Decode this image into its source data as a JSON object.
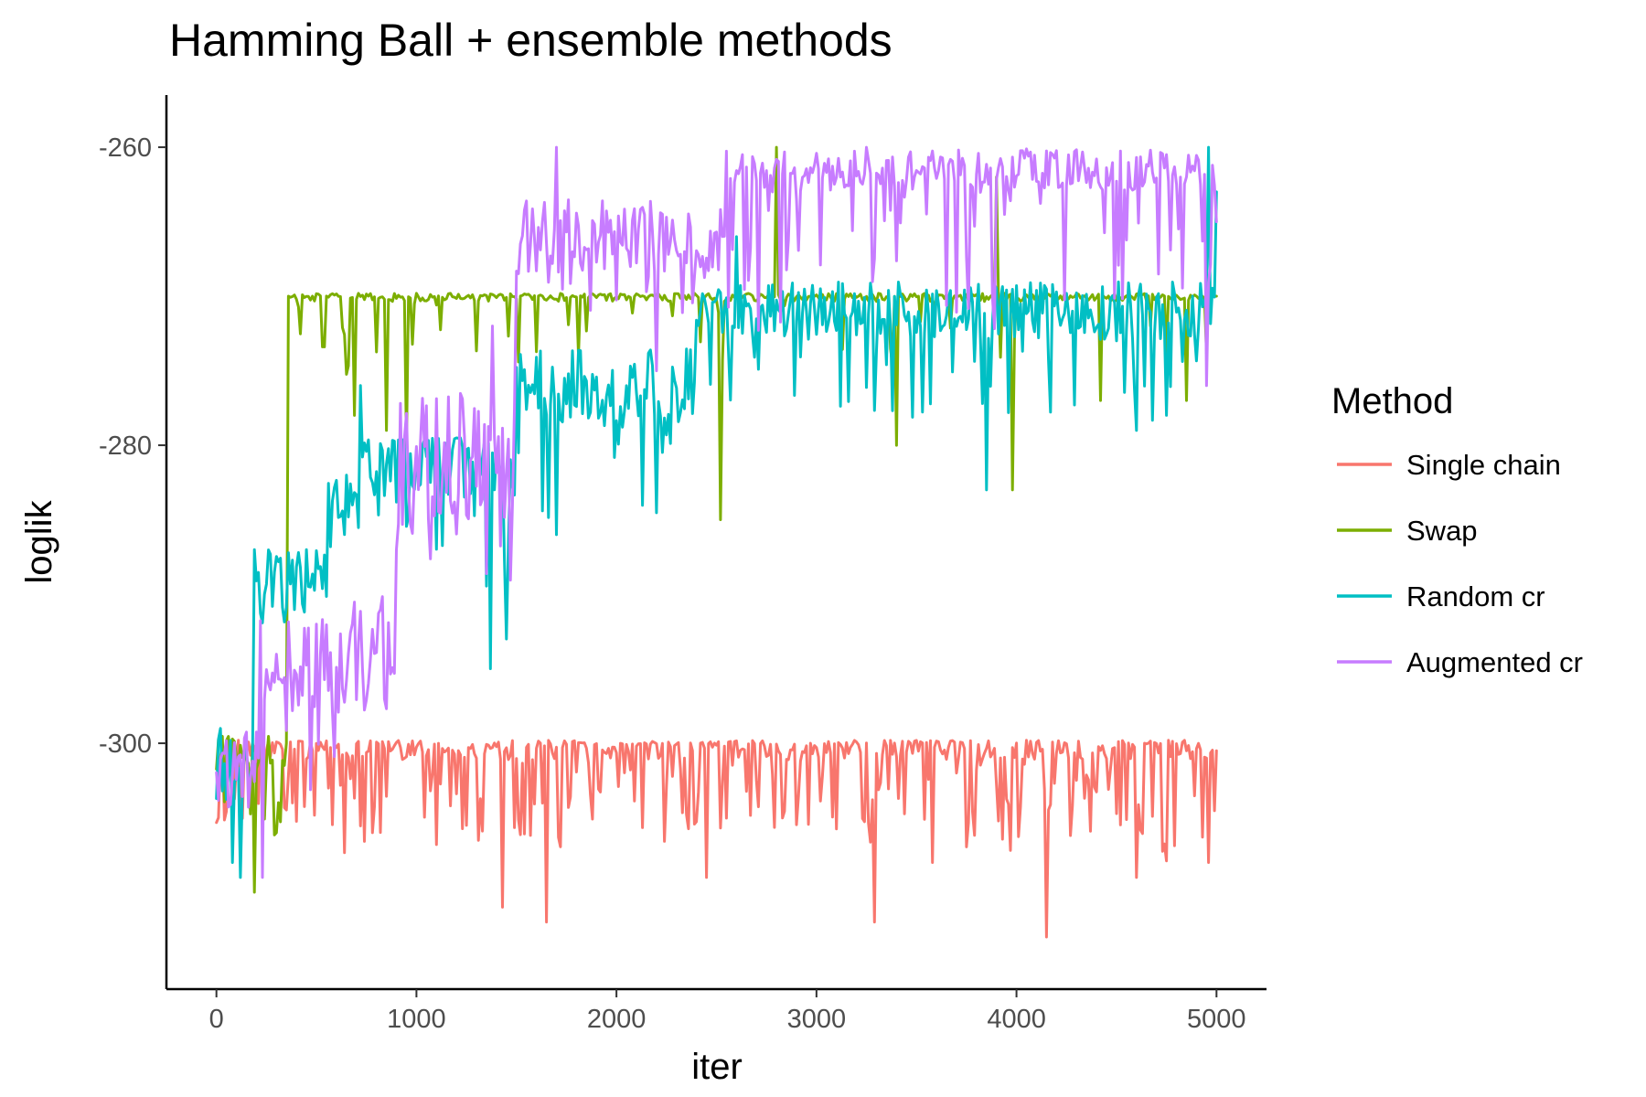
{
  "chart_data": {
    "type": "line",
    "title": "Hamming Ball + ensemble methods",
    "xlabel": "iter",
    "ylabel": "loglik",
    "xlim": [
      -250,
      5250
    ],
    "ylim": [
      -316.5,
      -256.5
    ],
    "xticks": [
      0,
      1000,
      2000,
      3000,
      4000,
      5000
    ],
    "xtick_labels": [
      "0",
      "1000",
      "2000",
      "3000",
      "4000",
      "5000"
    ],
    "yticks": [
      -300,
      -280,
      -260
    ],
    "ytick_labels": [
      "-300",
      "-280",
      "-260"
    ],
    "grid": false,
    "legend": {
      "title": "Method",
      "position": "right"
    },
    "series": [
      {
        "name": "Single chain",
        "color": "#F8766D",
        "x_start": 0,
        "x_end": 5000,
        "segments": [
          {
            "x0": 0,
            "x1": 5000,
            "base": -300.2,
            "noise": 0.9,
            "spike_prob": 0.3,
            "spike_min": 1,
            "spike_max": 7,
            "cap": -299.8
          }
        ],
        "events": [
          [
            15,
            -305
          ],
          [
            200,
            -300
          ],
          [
            380,
            -304
          ],
          [
            560,
            -303
          ],
          [
            780,
            -306
          ],
          [
            1430,
            -311
          ],
          [
            1650,
            -312
          ],
          [
            2450,
            -309
          ],
          [
            3290,
            -312
          ],
          [
            3580,
            -308
          ],
          [
            4150,
            -313
          ],
          [
            4600,
            -309
          ],
          [
            4960,
            -308
          ],
          [
            5000,
            -300.5
          ]
        ]
      },
      {
        "name": "Swap",
        "color": "#7CAE00",
        "x_start": 0,
        "x_end": 5000,
        "segments": [
          {
            "x0": 0,
            "x1": 360,
            "base": -300.5,
            "noise": 1.5,
            "spike_prob": 0.2,
            "spike_min": 1,
            "spike_max": 5,
            "cap": -299.5
          },
          {
            "x0": 360,
            "x1": 5000,
            "base": -270,
            "noise": 0.35,
            "spike_prob": 0.1,
            "spike_min": 0.5,
            "spike_max": 5,
            "cap": -269.8
          }
        ],
        "events": [
          [
            190,
            -310
          ],
          [
            300,
            -306
          ],
          [
            355,
            -300
          ],
          [
            365,
            -270
          ],
          [
            690,
            -278
          ],
          [
            850,
            -279
          ],
          [
            950,
            -280
          ],
          [
            2520,
            -285
          ],
          [
            2800,
            -260
          ],
          [
            3400,
            -280
          ],
          [
            3900,
            -262
          ],
          [
            3980,
            -283
          ],
          [
            4420,
            -277
          ],
          [
            4850,
            -277
          ],
          [
            5000,
            -270
          ]
        ]
      },
      {
        "name": "Random cr",
        "color": "#00BFC4",
        "x_start": 0,
        "x_end": 5000,
        "segments": [
          {
            "x0": 0,
            "x1": 190,
            "base": -302,
            "noise": 2.5,
            "spike_prob": 0.1,
            "spike_min": 1,
            "spike_max": 4,
            "cap": -299
          },
          {
            "x0": 190,
            "x1": 560,
            "base": -289,
            "noise": 2.5,
            "spike_prob": 0.1,
            "spike_min": 1,
            "spike_max": 5,
            "cap": -287
          },
          {
            "x0": 560,
            "x1": 720,
            "base": -284,
            "noise": 2,
            "spike_prob": 0.1,
            "spike_min": 1,
            "spike_max": 4,
            "cap": -282
          },
          {
            "x0": 720,
            "x1": 1500,
            "base": -281,
            "noise": 2.5,
            "spike_prob": 0.15,
            "spike_min": 1,
            "spike_max": 8,
            "cap": -279.5
          },
          {
            "x0": 1500,
            "x1": 2400,
            "base": -276,
            "noise": 2.5,
            "spike_prob": 0.15,
            "spike_min": 1,
            "spike_max": 7,
            "cap": -273.5
          },
          {
            "x0": 2400,
            "x1": 5000,
            "base": -271,
            "noise": 2,
            "spike_prob": 0.15,
            "spike_min": 1,
            "spike_max": 7,
            "cap": -265.5
          }
        ],
        "events": [
          [
            20,
            -299
          ],
          [
            80,
            -308
          ],
          [
            120,
            -309
          ],
          [
            195,
            -287
          ],
          [
            450,
            -287
          ],
          [
            720,
            -276
          ],
          [
            1370,
            -295
          ],
          [
            1450,
            -293
          ],
          [
            1700,
            -286
          ],
          [
            2600,
            -266
          ],
          [
            3850,
            -283
          ],
          [
            4280,
            -271
          ],
          [
            4600,
            -279
          ],
          [
            4960,
            -260
          ],
          [
            5000,
            -263
          ]
        ]
      },
      {
        "name": "Augmented cr",
        "color": "#C77CFF",
        "x_start": 0,
        "x_end": 5000,
        "segments": [
          {
            "x0": 0,
            "x1": 220,
            "base": -301,
            "noise": 1.8,
            "spike_prob": 0.1,
            "spike_min": 1,
            "spike_max": 5,
            "cap": -296
          },
          {
            "x0": 220,
            "x1": 900,
            "base": -294,
            "noise": 4,
            "spike_prob": 0.15,
            "spike_min": 1,
            "spike_max": 8,
            "cap": -284
          },
          {
            "x0": 900,
            "x1": 1500,
            "base": -281,
            "noise": 4.5,
            "spike_prob": 0.15,
            "spike_min": 1,
            "spike_max": 6,
            "cap": -270
          },
          {
            "x0": 1500,
            "x1": 2550,
            "base": -266,
            "noise": 2.5,
            "spike_prob": 0.15,
            "spike_min": 1,
            "spike_max": 6,
            "cap": -260
          },
          {
            "x0": 2550,
            "x1": 5000,
            "base": -261.5,
            "noise": 1.4,
            "spike_prob": 0.2,
            "spike_min": 1,
            "spike_max": 10,
            "cap": -260
          }
        ],
        "events": [
          [
            210,
            -301
          ],
          [
            230,
            -309
          ],
          [
            260,
            -296
          ],
          [
            900,
            -287
          ],
          [
            1380,
            -272
          ],
          [
            1700,
            -260
          ],
          [
            2200,
            -275
          ],
          [
            3250,
            -260
          ],
          [
            4950,
            -276
          ],
          [
            5000,
            -265
          ]
        ]
      }
    ]
  }
}
